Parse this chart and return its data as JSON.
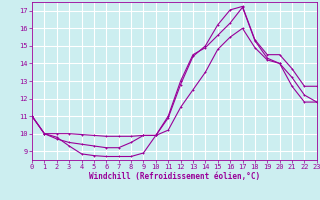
{
  "background_color": "#cceef0",
  "grid_color": "#aadddd",
  "line_color": "#990099",
  "xlabel": "Windchill (Refroidissement éolien,°C)",
  "xlim": [
    0,
    23
  ],
  "ylim": [
    8.5,
    17.5
  ],
  "yticks": [
    9,
    10,
    11,
    12,
    13,
    14,
    15,
    16,
    17
  ],
  "xticks": [
    0,
    1,
    2,
    3,
    4,
    5,
    6,
    7,
    8,
    9,
    10,
    11,
    12,
    13,
    14,
    15,
    16,
    17,
    18,
    19,
    20,
    21,
    22,
    23
  ],
  "curve1_x": [
    0,
    1,
    2,
    3,
    4,
    5,
    6,
    7,
    8,
    9,
    10,
    11,
    12,
    13,
    14,
    15,
    16,
    17,
    18,
    19,
    20,
    21,
    22,
    23
  ],
  "curve1_y": [
    11.0,
    10.0,
    9.8,
    9.3,
    8.85,
    8.75,
    8.7,
    8.7,
    8.7,
    8.9,
    9.9,
    10.9,
    12.8,
    14.4,
    15.0,
    16.2,
    17.05,
    17.25,
    15.35,
    14.5,
    14.5,
    13.7,
    12.7,
    12.7
  ],
  "curve2_x": [
    0,
    1,
    2,
    3,
    4,
    5,
    6,
    7,
    8,
    9,
    10,
    11,
    12,
    13,
    14,
    15,
    16,
    17,
    18,
    19,
    20,
    21,
    22,
    23
  ],
  "curve2_y": [
    11.0,
    10.0,
    10.0,
    10.0,
    9.95,
    9.9,
    9.85,
    9.85,
    9.85,
    9.9,
    9.9,
    10.2,
    11.5,
    12.5,
    13.5,
    14.8,
    15.5,
    16.0,
    14.9,
    14.2,
    14.0,
    13.2,
    12.2,
    11.8
  ],
  "curve3_x": [
    0,
    1,
    2,
    3,
    4,
    5,
    6,
    7,
    8,
    9,
    10,
    11,
    12,
    13,
    14,
    15,
    16,
    17,
    18,
    19,
    20,
    21,
    22,
    23
  ],
  "curve3_y": [
    11.0,
    10.0,
    9.7,
    9.5,
    9.4,
    9.3,
    9.2,
    9.2,
    9.5,
    9.9,
    9.9,
    11.0,
    13.0,
    14.5,
    14.9,
    15.6,
    16.3,
    17.2,
    15.3,
    14.3,
    14.0,
    12.7,
    11.8,
    11.8
  ]
}
